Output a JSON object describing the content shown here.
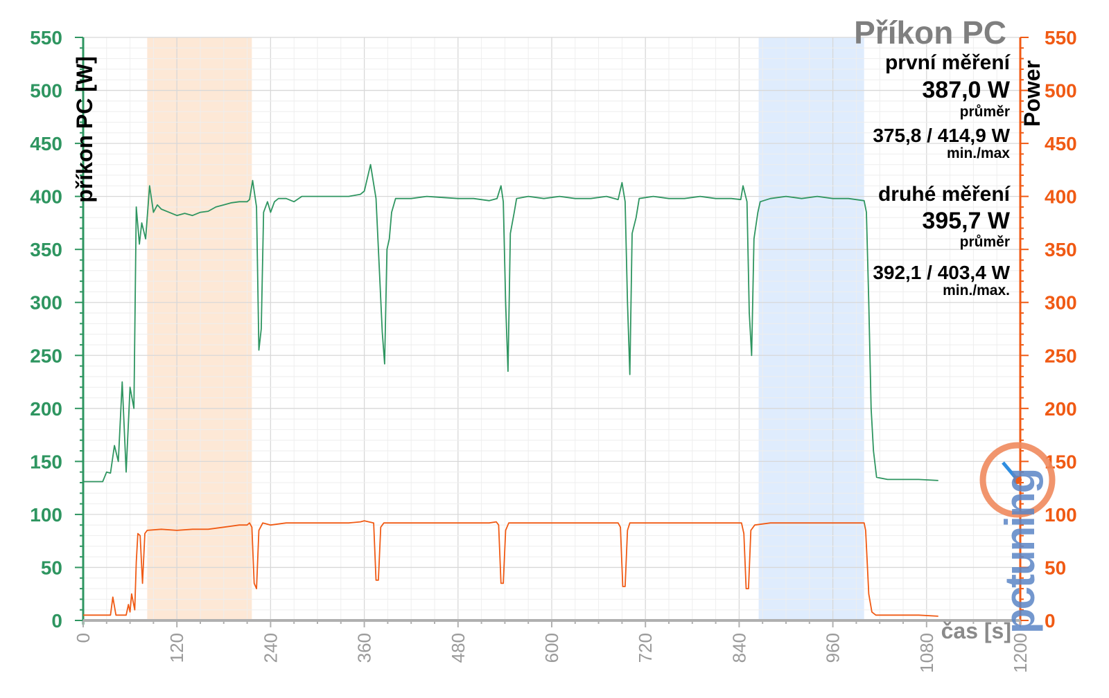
{
  "colors": {
    "green": "#2e9560",
    "orange": "#f05a14",
    "blue": "#2e8de0",
    "grid": "#e4e4e4",
    "band_first": "#fde4cf",
    "band_second": "#d9e9fd"
  },
  "legend": {
    "title": "Příkon PC",
    "first_label": "první měření",
    "first_avg": "387,0 W",
    "first_avg_caption": "průměr",
    "first_minmax": "375,8 / 414,9 W",
    "first_minmax_caption": "min./max",
    "second_label": "druhé měření",
    "second_avg": "395,7 W",
    "second_avg_caption": "průměr",
    "second_minmax": "392,1 / 403,4 W",
    "second_minmax_caption": "min./max."
  },
  "logo": {
    "text": "pctuning"
  },
  "chart_data": {
    "type": "line",
    "title": "Příkon PC",
    "xlabel": "čas [s]",
    "ylabel_left": "příkon PC [W]",
    "ylabel_right": "Power",
    "xlim": [
      0,
      1200
    ],
    "ylim": [
      0,
      550
    ],
    "x_ticks": [
      "0",
      "120",
      "240",
      "360",
      "480",
      "600",
      "720",
      "840",
      "960",
      "1080",
      "1200"
    ],
    "y_ticks": [
      "0",
      "50",
      "100",
      "150",
      "200",
      "250",
      "300",
      "350",
      "400",
      "450",
      "500",
      "550"
    ],
    "grid": true,
    "shaded_ranges": [
      {
        "from": 82,
        "to": 216,
        "name": "první měření"
      },
      {
        "from": 865,
        "to": 1000,
        "name": "druhé měření"
      }
    ],
    "series": [
      {
        "axis": "left",
        "points": [
          [
            0,
            131
          ],
          [
            25,
            131
          ],
          [
            30,
            140
          ],
          [
            35,
            139
          ],
          [
            40,
            165
          ],
          [
            45,
            150
          ],
          [
            50,
            225
          ],
          [
            55,
            140
          ],
          [
            60,
            220
          ],
          [
            65,
            200
          ],
          [
            68,
            390
          ],
          [
            72,
            355
          ],
          [
            75,
            375
          ],
          [
            80,
            360
          ],
          [
            85,
            410
          ],
          [
            90,
            385
          ],
          [
            95,
            392
          ],
          [
            100,
            388
          ],
          [
            110,
            385
          ],
          [
            120,
            382
          ],
          [
            130,
            384
          ],
          [
            140,
            382
          ],
          [
            150,
            385
          ],
          [
            160,
            386
          ],
          [
            170,
            390
          ],
          [
            180,
            392
          ],
          [
            190,
            394
          ],
          [
            200,
            395
          ],
          [
            210,
            395
          ],
          [
            213,
            397
          ],
          [
            217,
            415
          ],
          [
            222,
            390
          ],
          [
            225,
            255
          ],
          [
            228,
            275
          ],
          [
            231,
            385
          ],
          [
            236,
            395
          ],
          [
            240,
            385
          ],
          [
            245,
            395
          ],
          [
            250,
            398
          ],
          [
            260,
            398
          ],
          [
            270,
            395
          ],
          [
            280,
            400
          ],
          [
            300,
            400
          ],
          [
            320,
            400
          ],
          [
            340,
            400
          ],
          [
            355,
            402
          ],
          [
            360,
            405
          ],
          [
            368,
            430
          ],
          [
            375,
            398
          ],
          [
            380,
            320
          ],
          [
            383,
            272
          ],
          [
            386,
            242
          ],
          [
            389,
            350
          ],
          [
            392,
            360
          ],
          [
            395,
            385
          ],
          [
            400,
            398
          ],
          [
            420,
            398
          ],
          [
            440,
            400
          ],
          [
            460,
            399
          ],
          [
            480,
            398
          ],
          [
            500,
            398
          ],
          [
            520,
            396
          ],
          [
            530,
            398
          ],
          [
            535,
            410
          ],
          [
            538,
            395
          ],
          [
            541,
            300
          ],
          [
            544,
            235
          ],
          [
            547,
            365
          ],
          [
            552,
            385
          ],
          [
            555,
            398
          ],
          [
            570,
            400
          ],
          [
            590,
            398
          ],
          [
            610,
            400
          ],
          [
            630,
            398
          ],
          [
            650,
            398
          ],
          [
            670,
            400
          ],
          [
            685,
            397
          ],
          [
            690,
            413
          ],
          [
            694,
            395
          ],
          [
            697,
            300
          ],
          [
            700,
            232
          ],
          [
            703,
            365
          ],
          [
            708,
            380
          ],
          [
            712,
            398
          ],
          [
            730,
            400
          ],
          [
            750,
            398
          ],
          [
            770,
            398
          ],
          [
            790,
            400
          ],
          [
            810,
            398
          ],
          [
            830,
            398
          ],
          [
            842,
            397
          ],
          [
            845,
            410
          ],
          [
            850,
            395
          ],
          [
            853,
            290
          ],
          [
            856,
            250
          ],
          [
            859,
            360
          ],
          [
            864,
            385
          ],
          [
            867,
            395
          ],
          [
            880,
            398
          ],
          [
            900,
            400
          ],
          [
            920,
            398
          ],
          [
            940,
            400
          ],
          [
            960,
            398
          ],
          [
            980,
            398
          ],
          [
            1000,
            396
          ],
          [
            1003,
            385
          ],
          [
            1006,
            300
          ],
          [
            1009,
            200
          ],
          [
            1012,
            160
          ],
          [
            1016,
            135
          ],
          [
            1030,
            133
          ],
          [
            1050,
            133
          ],
          [
            1070,
            133
          ],
          [
            1095,
            132
          ]
        ]
      },
      {
        "axis": "right",
        "points": [
          [
            0,
            5
          ],
          [
            25,
            5
          ],
          [
            35,
            5
          ],
          [
            38,
            22
          ],
          [
            42,
            5
          ],
          [
            55,
            5
          ],
          [
            58,
            15
          ],
          [
            60,
            8
          ],
          [
            62,
            25
          ],
          [
            66,
            10
          ],
          [
            68,
            55
          ],
          [
            70,
            82
          ],
          [
            73,
            80
          ],
          [
            76,
            35
          ],
          [
            79,
            82
          ],
          [
            82,
            85
          ],
          [
            100,
            86
          ],
          [
            120,
            85
          ],
          [
            140,
            86
          ],
          [
            160,
            86
          ],
          [
            180,
            88
          ],
          [
            200,
            90
          ],
          [
            210,
            90
          ],
          [
            213,
            92
          ],
          [
            216,
            88
          ],
          [
            219,
            35
          ],
          [
            222,
            30
          ],
          [
            225,
            85
          ],
          [
            230,
            92
          ],
          [
            240,
            90
          ],
          [
            260,
            92
          ],
          [
            280,
            92
          ],
          [
            300,
            92
          ],
          [
            320,
            92
          ],
          [
            340,
            92
          ],
          [
            355,
            93
          ],
          [
            360,
            94
          ],
          [
            372,
            92
          ],
          [
            375,
            38
          ],
          [
            378,
            38
          ],
          [
            381,
            88
          ],
          [
            385,
            92
          ],
          [
            400,
            92
          ],
          [
            420,
            92
          ],
          [
            440,
            92
          ],
          [
            460,
            92
          ],
          [
            480,
            92
          ],
          [
            500,
            92
          ],
          [
            520,
            92
          ],
          [
            529,
            93
          ],
          [
            532,
            90
          ],
          [
            535,
            35
          ],
          [
            538,
            35
          ],
          [
            541,
            85
          ],
          [
            545,
            92
          ],
          [
            560,
            92
          ],
          [
            580,
            92
          ],
          [
            600,
            92
          ],
          [
            620,
            92
          ],
          [
            640,
            92
          ],
          [
            660,
            92
          ],
          [
            680,
            92
          ],
          [
            685,
            92
          ],
          [
            688,
            88
          ],
          [
            691,
            32
          ],
          [
            694,
            32
          ],
          [
            697,
            85
          ],
          [
            700,
            92
          ],
          [
            720,
            92
          ],
          [
            740,
            92
          ],
          [
            760,
            92
          ],
          [
            780,
            92
          ],
          [
            800,
            92
          ],
          [
            820,
            92
          ],
          [
            840,
            92
          ],
          [
            843,
            92
          ],
          [
            846,
            82
          ],
          [
            849,
            30
          ],
          [
            852,
            30
          ],
          [
            855,
            85
          ],
          [
            860,
            90
          ],
          [
            880,
            92
          ],
          [
            900,
            92
          ],
          [
            920,
            92
          ],
          [
            940,
            92
          ],
          [
            960,
            92
          ],
          [
            980,
            92
          ],
          [
            995,
            92
          ],
          [
            1000,
            92
          ],
          [
            1002,
            85
          ],
          [
            1006,
            25
          ],
          [
            1010,
            8
          ],
          [
            1015,
            5
          ],
          [
            1030,
            5
          ],
          [
            1050,
            5
          ],
          [
            1070,
            5
          ],
          [
            1095,
            4
          ]
        ]
      }
    ]
  }
}
